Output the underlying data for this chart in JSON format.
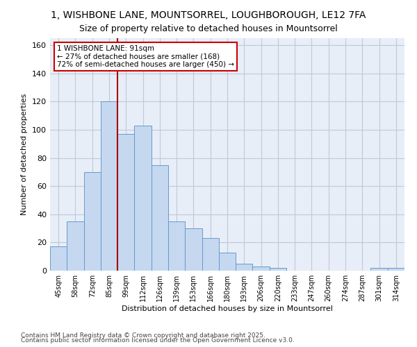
{
  "title": "1, WISHBONE LANE, MOUNTSORREL, LOUGHBOROUGH, LE12 7FA",
  "subtitle": "Size of property relative to detached houses in Mountsorrel",
  "xlabel": "Distribution of detached houses by size in Mountsorrel",
  "ylabel": "Number of detached properties",
  "categories": [
    "45sqm",
    "58sqm",
    "72sqm",
    "85sqm",
    "99sqm",
    "112sqm",
    "126sqm",
    "139sqm",
    "153sqm",
    "166sqm",
    "180sqm",
    "193sqm",
    "206sqm",
    "220sqm",
    "233sqm",
    "247sqm",
    "260sqm",
    "274sqm",
    "287sqm",
    "301sqm",
    "314sqm"
  ],
  "bar_heights": [
    17,
    35,
    70,
    120,
    97,
    103,
    75,
    35,
    30,
    23,
    13,
    5,
    3,
    2,
    0,
    0,
    0,
    0,
    0,
    2,
    2
  ],
  "bar_color": "#c5d8f0",
  "bar_edge_color": "#6699cc",
  "grid_color": "#c0c8d8",
  "bg_color": "#e8eef8",
  "vline_color": "#aa0000",
  "vline_bin_index": 3,
  "annotation_text": "1 WISHBONE LANE: 91sqm\n← 27% of detached houses are smaller (168)\n72% of semi-detached houses are larger (450) →",
  "annotation_box_edgecolor": "#cc0000",
  "ylim": [
    0,
    165
  ],
  "yticks": [
    0,
    20,
    40,
    60,
    80,
    100,
    120,
    140,
    160
  ],
  "footer_line1": "Contains HM Land Registry data © Crown copyright and database right 2025.",
  "footer_line2": "Contains public sector information licensed under the Open Government Licence v3.0.",
  "title_fontsize": 10,
  "subtitle_fontsize": 9,
  "tick_fontsize": 7,
  "axis_label_fontsize": 8,
  "annotation_fontsize": 7.5,
  "footer_fontsize": 6.5
}
